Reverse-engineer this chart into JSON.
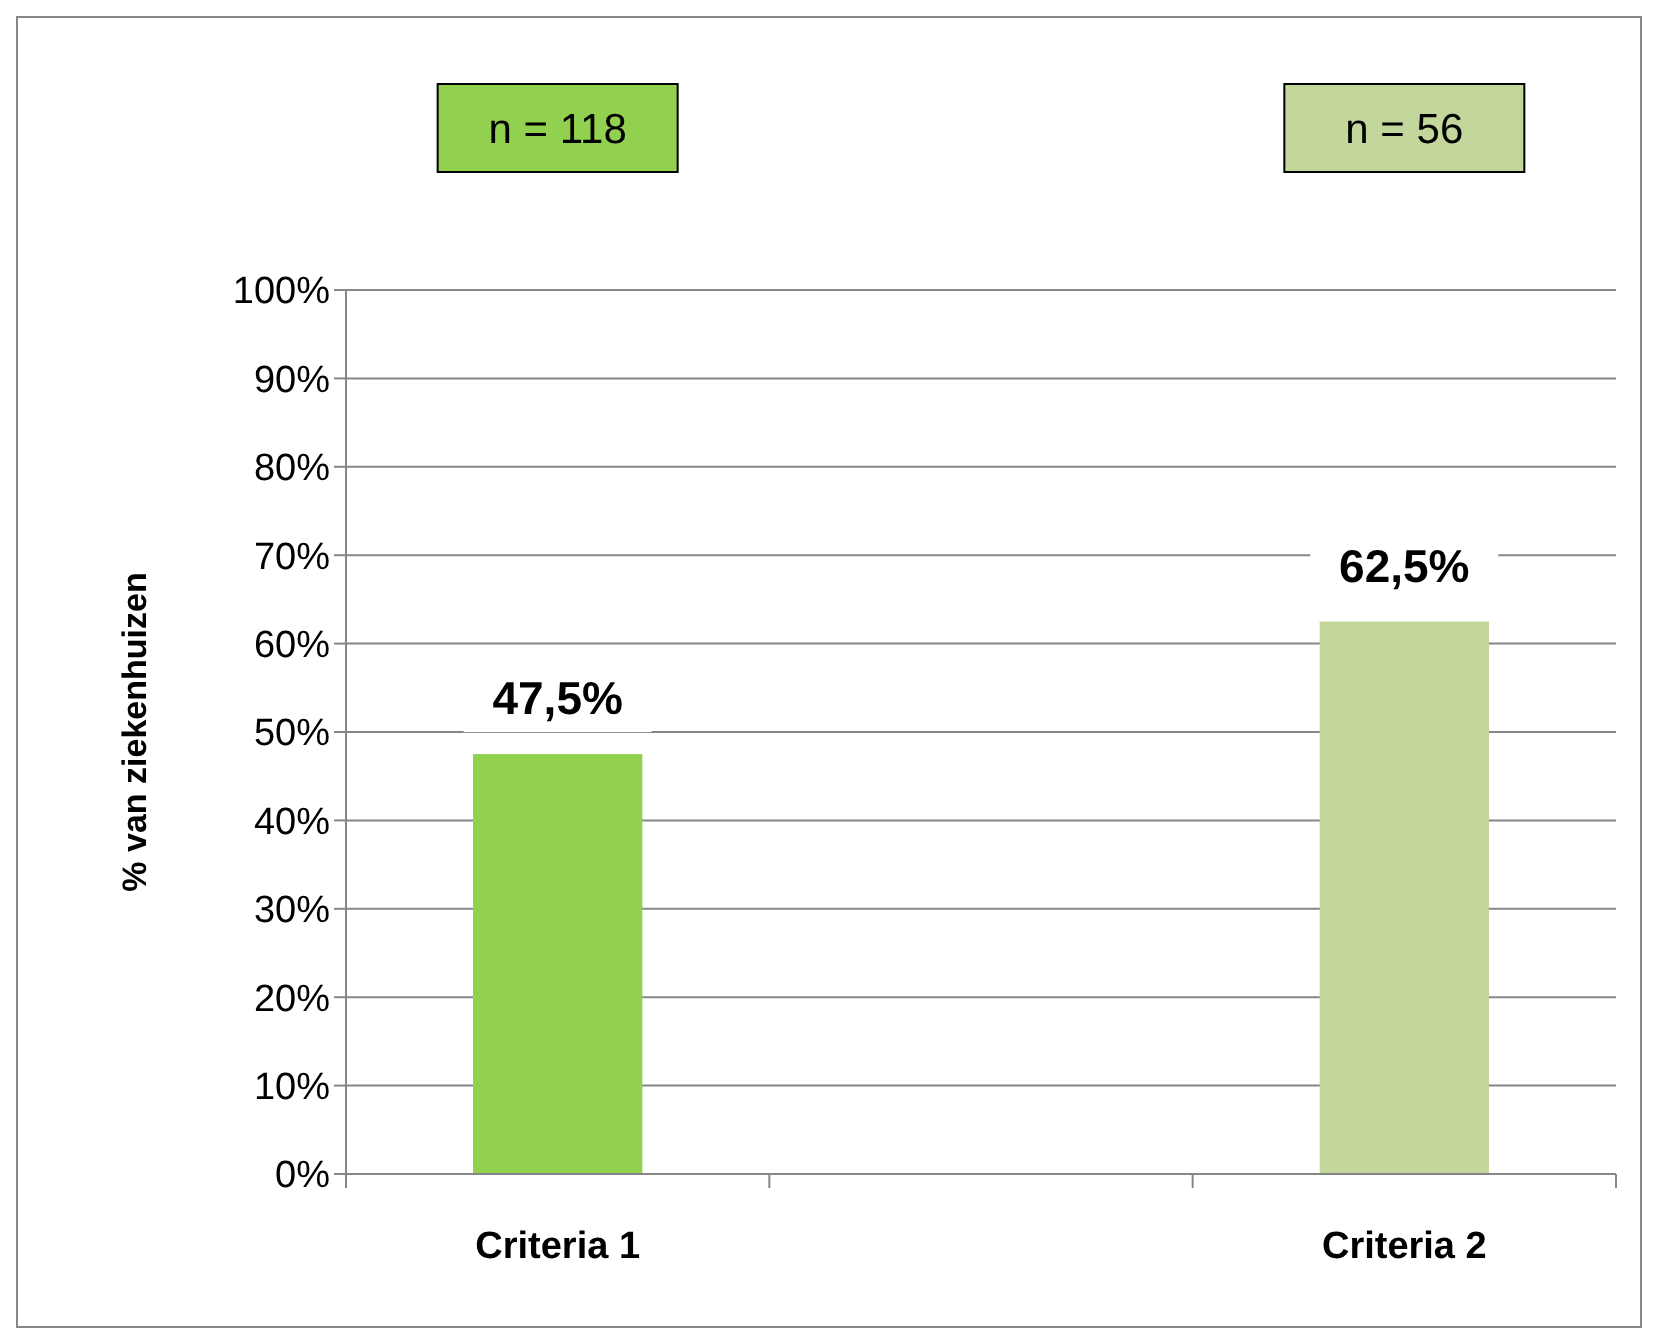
{
  "chart_data": {
    "type": "bar",
    "ylabel": "% van ziekenhuizen",
    "categories": [
      "Criteria 1",
      null,
      "Criteria 2"
    ],
    "values": [
      47.5,
      null,
      62.5
    ],
    "colors": [
      "#92d050",
      null,
      "#c3d69b"
    ],
    "value_labels": [
      "47,5%",
      null,
      "62,5%"
    ],
    "ylim": [
      0,
      100
    ],
    "yticks": [
      {
        "value": 0,
        "label": "0%"
      },
      {
        "value": 10,
        "label": "10%"
      },
      {
        "value": 20,
        "label": "20%"
      },
      {
        "value": 30,
        "label": "30%"
      },
      {
        "value": 40,
        "label": "40%"
      },
      {
        "value": 50,
        "label": "50%"
      },
      {
        "value": 60,
        "label": "60%"
      },
      {
        "value": 70,
        "label": "70%"
      },
      {
        "value": 80,
        "label": "80%"
      },
      {
        "value": 90,
        "label": "90%"
      },
      {
        "value": 100,
        "label": "100%"
      }
    ],
    "grid": "y",
    "annotations": [
      "n = 118",
      "n = 56"
    ]
  }
}
